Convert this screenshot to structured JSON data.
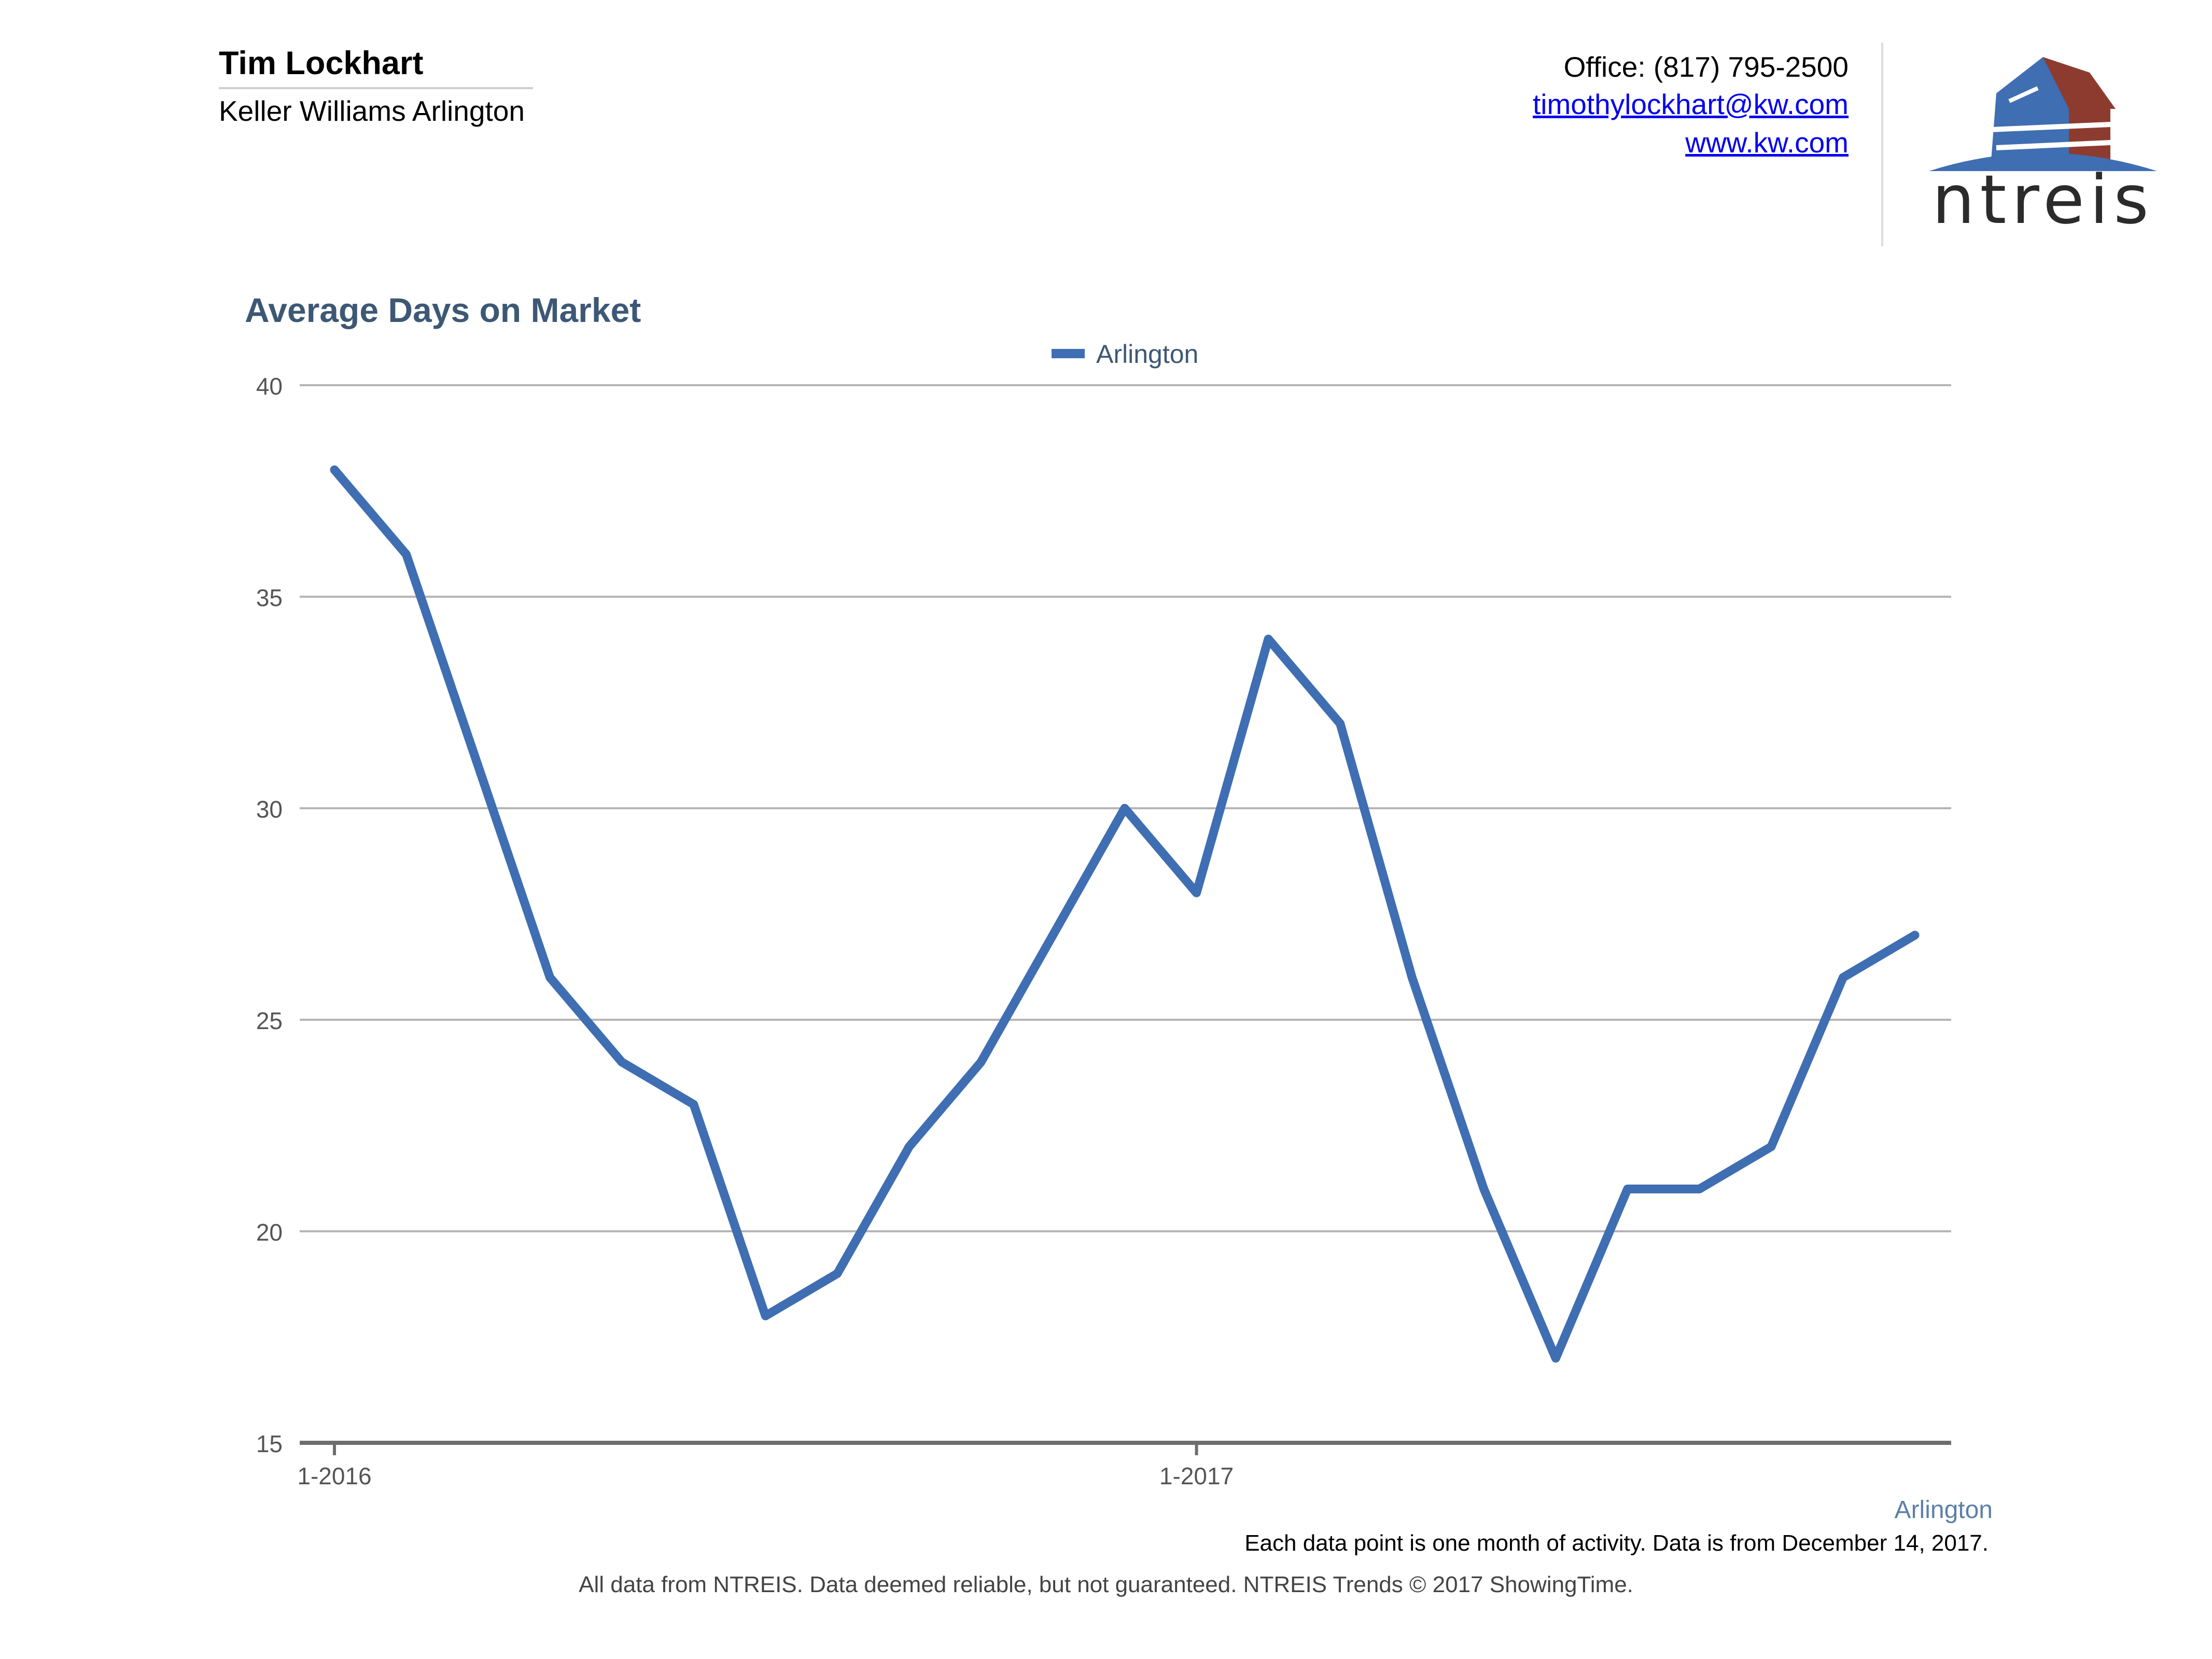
{
  "header": {
    "agent_name": "Tim Lockhart",
    "agent_company": "Keller Williams Arlington",
    "office": "Office: (817) 795-2500",
    "email": "timothylockhart@kw.com",
    "website": "www.kw.com",
    "logo_text": "ntreis"
  },
  "colors": {
    "series": "#3f6eb2",
    "title": "#3d5875",
    "logo_blue": "#3f6eb2",
    "logo_red": "#8e3b2f"
  },
  "chart_data": {
    "type": "line",
    "title": "Average Days on Market",
    "legend_position": "top-center",
    "grid": true,
    "ylim": [
      15,
      40
    ],
    "yticks": [
      15,
      20,
      25,
      30,
      35,
      40
    ],
    "xlim": [
      0,
      22
    ],
    "x_tick_labels": [
      {
        "x": 0,
        "label": "1-2016"
      },
      {
        "x": 12,
        "label": "1-2017"
      }
    ],
    "x_axis_note": "Arlington",
    "series": [
      {
        "name": "Arlington",
        "values": [
          38,
          36,
          31,
          26,
          24,
          23,
          18,
          19,
          22,
          24,
          27,
          30,
          28,
          34,
          32,
          26,
          21,
          17,
          21,
          21,
          22,
          26,
          27
        ]
      }
    ]
  },
  "footer": {
    "note": "Each data point is one month of activity. Data is from December 14, 2017.",
    "disclaimer": "All data from NTREIS. Data deemed reliable, but not guaranteed. NTREIS Trends © 2017 ShowingTime."
  }
}
